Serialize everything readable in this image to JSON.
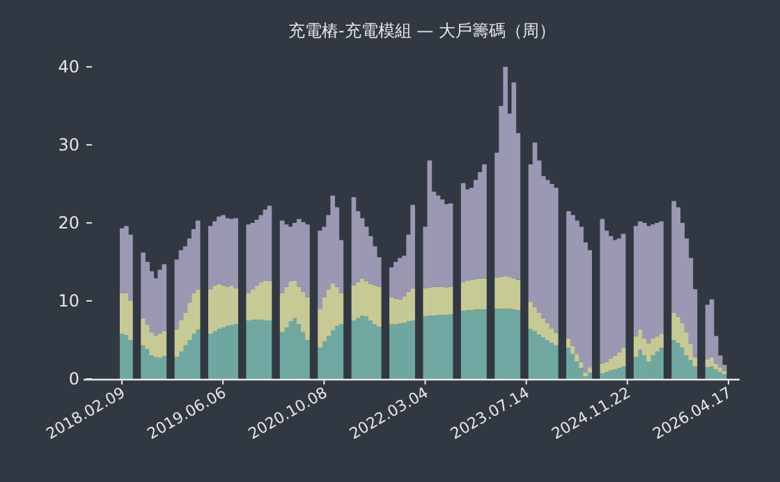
{
  "chart_data": {
    "type": "bar",
    "stacked": true,
    "title": "充電樁-充電模組 — 大戶籌碼（周）",
    "categories": [
      "2018.02.09",
      null,
      null,
      null,
      null,
      null,
      null,
      null,
      null,
      null,
      null,
      null,
      null,
      null,
      null,
      null,
      null,
      null,
      null,
      null,
      null,
      null,
      null,
      null,
      "2019.06.06",
      null,
      null,
      null,
      null,
      null,
      null,
      null,
      null,
      null,
      null,
      null,
      null,
      null,
      null,
      null,
      null,
      null,
      null,
      null,
      null,
      null,
      null,
      null,
      "2020.10.08",
      null,
      null,
      null,
      null,
      null,
      null,
      null,
      null,
      null,
      null,
      null,
      null,
      null,
      null,
      null,
      null,
      null,
      null,
      null,
      null,
      null,
      null,
      null,
      "2022.03.04",
      null,
      null,
      null,
      null,
      null,
      null,
      null,
      null,
      null,
      null,
      null,
      null,
      null,
      null,
      null,
      null,
      null,
      null,
      null,
      null,
      null,
      null,
      null,
      "2023.07.14",
      null,
      null,
      null,
      null,
      null,
      null,
      null,
      null,
      null,
      null,
      null,
      null,
      null,
      null,
      null,
      null,
      null,
      null,
      null,
      null,
      null,
      null,
      null,
      "2024.11.22",
      null,
      null,
      null,
      null,
      null,
      null,
      null,
      null,
      null,
      null,
      null,
      null,
      null,
      null,
      null,
      null,
      null,
      null,
      null,
      null,
      null,
      null,
      null,
      "2026.04.17"
    ],
    "series": [
      {
        "color": "#6fa8a0",
        "values": [
          5.8,
          5.6,
          5,
          null,
          null,
          4.3,
          3.8,
          3,
          2.8,
          2.7,
          2.9,
          null,
          null,
          2.8,
          3.5,
          4.3,
          5,
          5.8,
          6.3,
          null,
          null,
          5.8,
          6.1,
          6.4,
          6.6,
          6.8,
          6.9,
          7,
          null,
          null,
          7.5,
          7.6,
          7.6,
          7.6,
          7.5,
          7.5,
          null,
          null,
          6,
          6.6,
          7.4,
          7.8,
          7,
          6,
          5,
          null,
          null,
          4,
          4.8,
          5.5,
          6.2,
          6.8,
          7,
          null,
          null,
          7.5,
          7.8,
          8.1,
          8,
          7.5,
          7,
          6.7,
          null,
          null,
          7,
          7,
          7.1,
          7.2,
          7.4,
          7.5,
          null,
          null,
          8,
          8.1,
          8.1,
          8.2,
          8.2,
          8.2,
          8.3,
          null,
          null,
          8.7,
          8.8,
          8.8,
          8.9,
          8.9,
          8.9,
          null,
          null,
          9,
          9,
          9,
          9,
          8.9,
          8.8,
          null,
          null,
          6.4,
          6.1,
          5.7,
          5.3,
          5,
          4.6,
          4.3,
          null,
          null,
          4,
          3.2,
          2.2,
          1.4,
          0.3,
          0.8,
          null,
          null,
          0.7,
          0.9,
          1.1,
          1.2,
          1.4,
          1.6,
          null,
          null,
          2.8,
          3.7,
          3,
          2.2,
          3,
          3.5,
          4,
          null,
          null,
          5,
          4.6,
          4,
          3,
          2.4,
          1.6,
          null,
          null,
          1.5,
          1.6,
          1.2,
          0.9,
          0.6,
          null
        ]
      },
      {
        "color": "#c8ca95",
        "values": [
          5.2,
          5.4,
          5,
          null,
          null,
          3.5,
          3.2,
          3,
          2.8,
          3.1,
          3.3,
          null,
          null,
          3.6,
          4,
          4.2,
          4.8,
          5.2,
          5.2,
          null,
          null,
          5.7,
          5.9,
          5.8,
          5.4,
          5,
          5.1,
          4.6,
          null,
          null,
          3.5,
          3.9,
          4.4,
          4.8,
          5.1,
          5,
          null,
          null,
          5,
          5.2,
          5.1,
          4.8,
          4.8,
          5.2,
          5.5,
          null,
          null,
          5,
          5.7,
          6,
          6.1,
          5,
          4,
          null,
          null,
          4.5,
          4.6,
          4.8,
          4.5,
          4.7,
          5,
          5.1,
          null,
          null,
          3.5,
          3.3,
          3.1,
          3.4,
          3.8,
          4.1,
          null,
          null,
          3.6,
          3.6,
          3.7,
          3.6,
          3.6,
          3.5,
          3.5,
          null,
          null,
          3.7,
          3.8,
          3.9,
          3.9,
          4,
          4,
          null,
          null,
          4,
          4.1,
          4.2,
          4.1,
          4,
          3.9,
          null,
          null,
          3.5,
          3.1,
          2.8,
          2.5,
          2.2,
          1.9,
          1.6,
          null,
          null,
          1.2,
          1,
          1,
          0.8,
          0.5,
          0.7,
          null,
          null,
          1.3,
          1.3,
          1.5,
          1.8,
          2,
          2.4,
          null,
          null,
          2.7,
          2.7,
          2.2,
          2.4,
          2.2,
          2,
          1.8,
          null,
          null,
          3.5,
          3.4,
          3.2,
          3,
          2.1,
          1.2,
          null,
          null,
          1,
          1.2,
          0.8,
          0.6,
          0.4,
          null
        ]
      },
      {
        "color": "#9b98b3",
        "values": [
          8.3,
          8.6,
          8.5,
          null,
          null,
          8.4,
          8,
          7.8,
          7.3,
          8.2,
          8.5,
          null,
          null,
          8.9,
          9,
          8.5,
          8.2,
          8.2,
          8.8,
          null,
          null,
          8.1,
          8.2,
          8.6,
          9,
          8.8,
          8.5,
          9,
          null,
          null,
          8.8,
          8.5,
          8.4,
          8.6,
          9.1,
          9.7,
          null,
          null,
          9.3,
          8,
          7,
          7.4,
          8.7,
          8.9,
          9.3,
          null,
          null,
          10,
          9,
          9.5,
          11.2,
          10.2,
          6.8,
          null,
          null,
          11.3,
          9.1,
          7.7,
          7,
          6.1,
          5,
          3.8,
          null,
          null,
          3.8,
          4.7,
          5.3,
          5.2,
          7.3,
          10.7,
          null,
          null,
          7.9,
          16.3,
          12.2,
          11.7,
          11.2,
          10.7,
          10.7,
          null,
          null,
          12.7,
          11.7,
          11.8,
          12.7,
          13.6,
          14.6,
          null,
          null,
          16,
          21.9,
          26.8,
          20.9,
          25.1,
          18.8,
          null,
          null,
          17.6,
          21.1,
          19.5,
          18.2,
          18.3,
          18.5,
          18.6,
          null,
          null,
          16.3,
          16.8,
          17.1,
          17.3,
          16.7,
          15,
          null,
          null,
          18.5,
          16.8,
          15.7,
          14.8,
          14.6,
          14.6,
          null,
          null,
          14.1,
          13.8,
          14.8,
          15,
          14.6,
          14.5,
          14.4,
          null,
          null,
          14.3,
          14,
          12.8,
          12,
          11,
          8.7,
          null,
          null,
          7,
          7.4,
          3.5,
          1.5,
          0.8,
          null
        ]
      }
    ],
    "ylim": [
      0,
      40
    ],
    "yticks": [
      0,
      10,
      20,
      30,
      40
    ]
  }
}
